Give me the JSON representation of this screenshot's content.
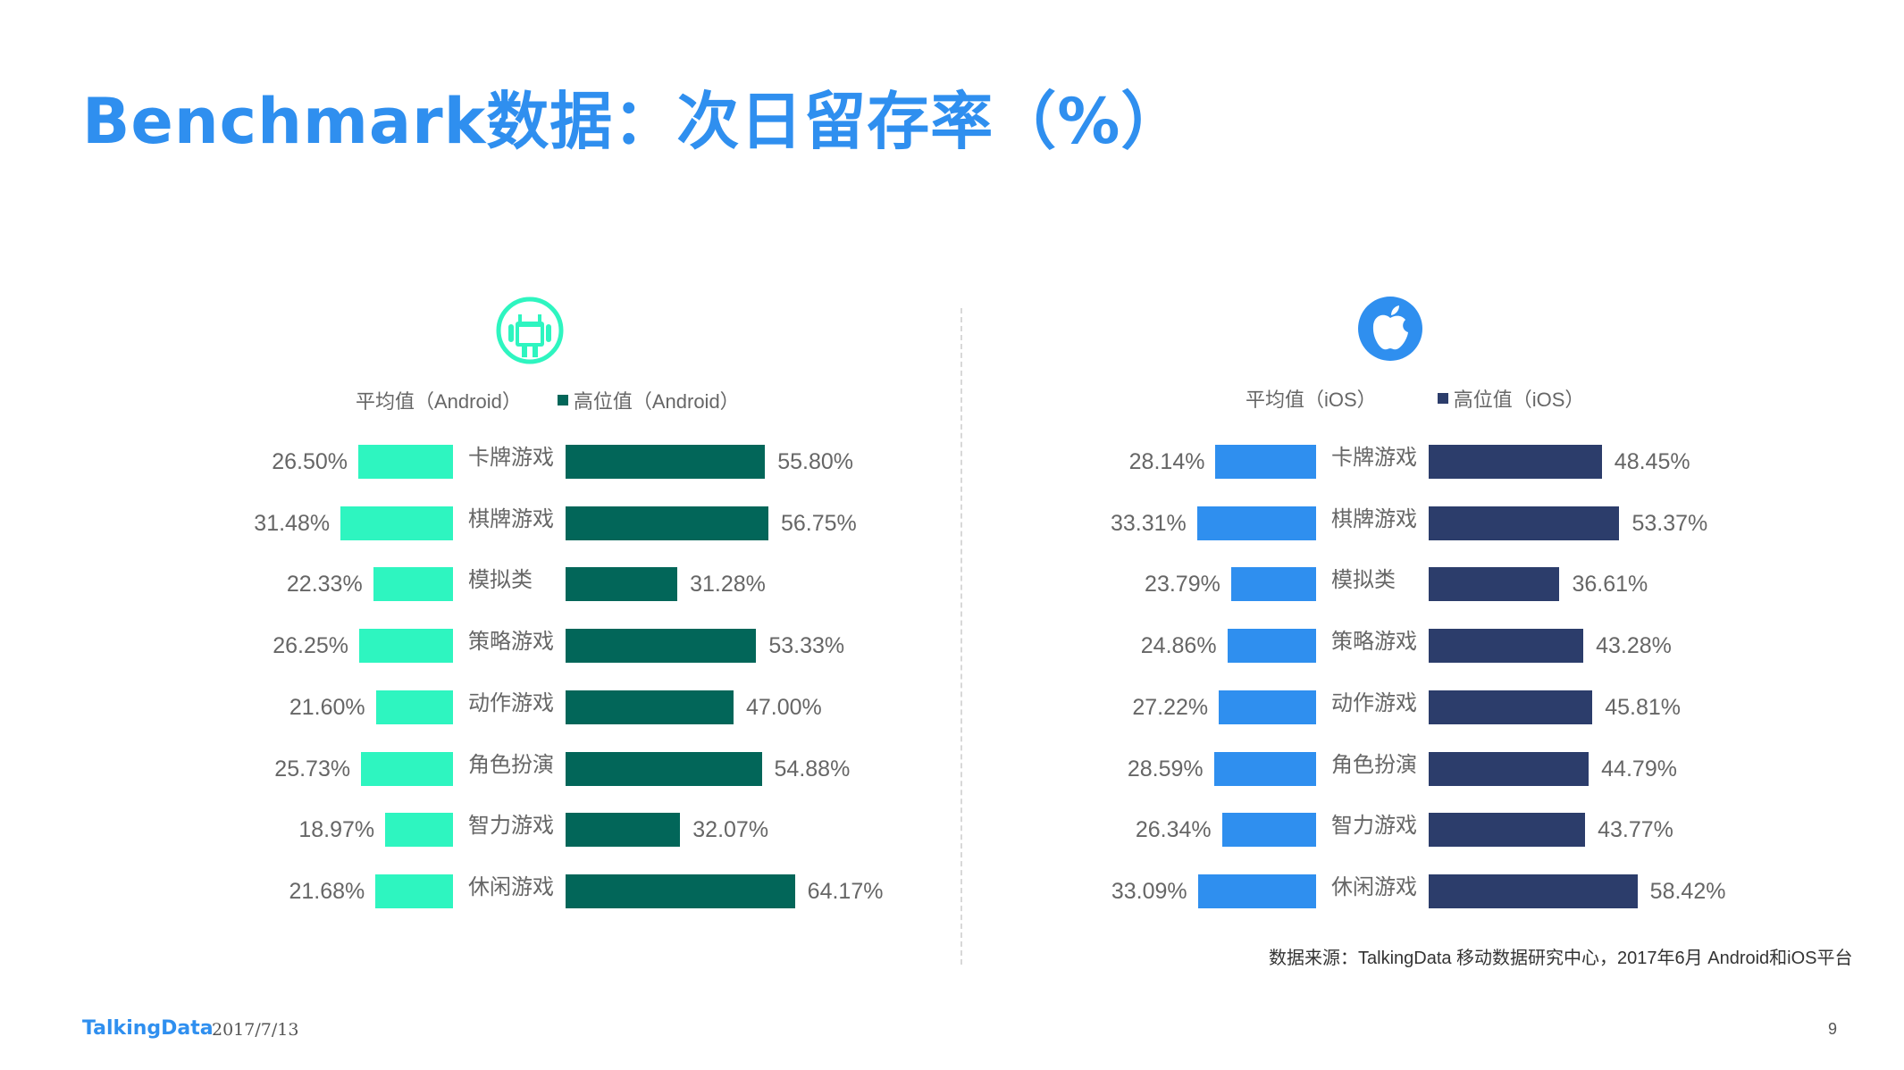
{
  "title": "Benchmark数据：次日留存率（%）",
  "footer": {
    "logo": "TalkingData",
    "date": "2017/7/13",
    "page": "9",
    "source": "数据来源：TalkingData 移动数据研究中心，2017年6月 Android和iOS平台"
  },
  "colors": {
    "title": "#2f8fef",
    "android_avg": "#2ef5c0",
    "android_high": "#026659",
    "ios_avg": "#2f8fef",
    "ios_high": "#2c3d6b",
    "android_icon": "#2ef5c0",
    "ios_icon": "#2f8fef"
  },
  "panels": {
    "android": {
      "icon": "android-icon",
      "legend_avg": "平均值（Android）",
      "legend_high": "高位值（Android）"
    },
    "ios": {
      "icon": "apple-icon",
      "legend_avg": "平均值（iOS）",
      "legend_high": "高位值（iOS）"
    }
  },
  "chart_data": [
    {
      "type": "bar",
      "orientation": "horizontal-butterfly",
      "categories": [
        "卡牌游戏",
        "棋牌游戏",
        "模拟类",
        "策略游戏",
        "动作游戏",
        "角色扮演",
        "智力游戏",
        "休闲游戏"
      ],
      "series": [
        {
          "name": "平均值（Android）",
          "values": [
            26.5,
            31.48,
            22.33,
            26.25,
            21.6,
            25.73,
            18.97,
            21.68
          ],
          "labels": [
            "26.50%",
            "31.48%",
            "22.33%",
            "26.25%",
            "21.60%",
            "25.73%",
            "18.97%",
            "21.68%"
          ]
        },
        {
          "name": "高位值（Android）",
          "values": [
            55.8,
            56.75,
            31.28,
            53.33,
            47.0,
            54.88,
            32.07,
            64.17
          ],
          "labels": [
            "55.80%",
            "56.75%",
            "31.28%",
            "53.33%",
            "47.00%",
            "54.88%",
            "32.07%",
            "64.17%"
          ]
        }
      ],
      "legend": "top"
    },
    {
      "type": "bar",
      "orientation": "horizontal-butterfly",
      "categories": [
        "卡牌游戏",
        "棋牌游戏",
        "模拟类",
        "策略游戏",
        "动作游戏",
        "角色扮演",
        "智力游戏",
        "休闲游戏"
      ],
      "series": [
        {
          "name": "平均值（iOS）",
          "values": [
            28.14,
            33.31,
            23.79,
            24.86,
            27.22,
            28.59,
            26.34,
            33.09
          ],
          "labels": [
            "28.14%",
            "33.31%",
            "23.79%",
            "24.86%",
            "27.22%",
            "28.59%",
            "26.34%",
            "33.09%"
          ]
        },
        {
          "name": "高位值（iOS）",
          "values": [
            48.45,
            53.37,
            36.61,
            43.28,
            45.81,
            44.79,
            43.77,
            58.42
          ],
          "labels": [
            "48.45%",
            "53.37%",
            "36.61%",
            "43.28%",
            "45.81%",
            "44.79%",
            "43.77%",
            "58.42%"
          ]
        }
      ],
      "legend": "top"
    }
  ]
}
